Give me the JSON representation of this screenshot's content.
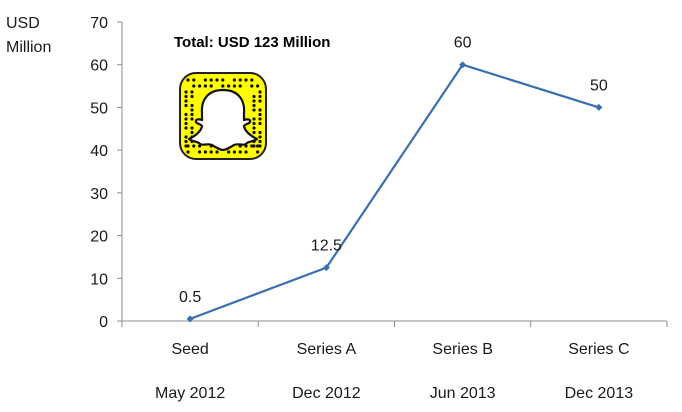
{
  "chart_data": {
    "type": "line",
    "title": "Total: USD 123 Million",
    "ylabel_line1": "USD",
    "ylabel_line2": "Million",
    "xlabel": "",
    "categories": [
      "Seed",
      "Series A",
      "Series B",
      "Series C"
    ],
    "dates": [
      "May 2012",
      "Dec 2012",
      "Jun 2013",
      "Dec 2013"
    ],
    "values": [
      0.5,
      12.5,
      60,
      50
    ],
    "data_labels": [
      "0.5",
      "12.5",
      "60",
      "50"
    ],
    "ylim": [
      0,
      70
    ],
    "yticks": [
      0,
      10,
      20,
      30,
      40,
      50,
      60,
      70
    ],
    "grid": false,
    "legend": "none",
    "line_color": "#3A6FB0",
    "logo_color": "#FFFC00",
    "logo": "snapchat-ghost-icon"
  }
}
